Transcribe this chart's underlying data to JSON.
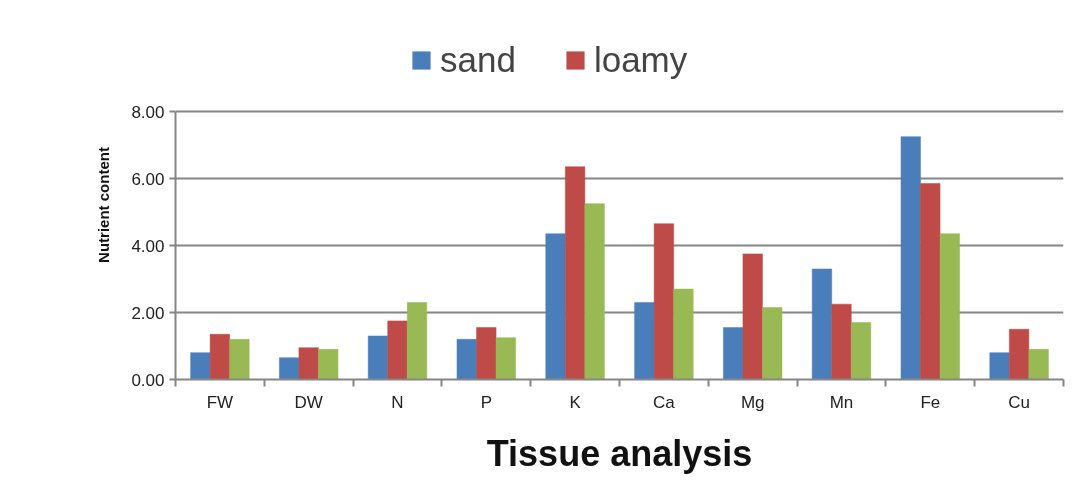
{
  "chart_data": {
    "type": "bar",
    "categories": [
      "FW",
      "DW",
      "N",
      "P",
      "K",
      "Ca",
      "Mg",
      "Mn",
      "Fe",
      "Cu"
    ],
    "series": [
      {
        "name": "sand",
        "color": "#4a7ebb",
        "values": [
          0.8,
          0.65,
          1.3,
          1.2,
          4.35,
          2.3,
          1.55,
          3.3,
          7.25,
          0.8
        ]
      },
      {
        "name": "loamy",
        "color": "#be4b48",
        "values": [
          1.35,
          0.95,
          1.75,
          1.55,
          6.35,
          4.65,
          3.75,
          2.25,
          5.85,
          1.5
        ]
      },
      {
        "color": "#98b954",
        "values": [
          1.2,
          0.9,
          2.3,
          1.25,
          5.25,
          2.7,
          2.15,
          1.7,
          4.35,
          0.9
        ]
      }
    ],
    "ylim": [
      0,
      8
    ],
    "yticks": [
      {
        "value": 0,
        "label": "0.00"
      },
      {
        "value": 2,
        "label": "2.00"
      },
      {
        "value": 4,
        "label": "4.00"
      },
      {
        "value": 6,
        "label": "6.00"
      },
      {
        "value": 8,
        "label": "8.00"
      }
    ],
    "xlabel": "Tissue analysis",
    "ylabel": "Nutrient content",
    "legend": "top",
    "grid": "y"
  }
}
